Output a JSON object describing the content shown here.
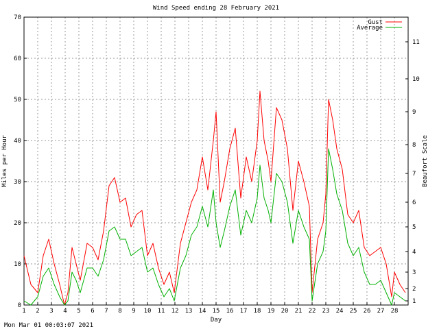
{
  "chart_data": {
    "type": "line",
    "title": "Wind Speed ending 28 February 2021",
    "xlabel": "Day",
    "ylabel": "Miles per Hour",
    "y2label": "Beaufort Scale",
    "xlim": [
      1,
      29
    ],
    "ylim": [
      0,
      70
    ],
    "grid": true,
    "legend_position": "top-right",
    "x_ticks": [
      "1",
      "2",
      "3",
      "4",
      "5",
      "6",
      "7",
      "8",
      "9",
      "10",
      "11",
      "12",
      "13",
      "14",
      "15",
      "16",
      "17",
      "18",
      "19",
      "20",
      "21",
      "22",
      "23",
      "24",
      "25",
      "26",
      "27",
      "28"
    ],
    "y_ticks": [
      "0",
      "10",
      "20",
      "30",
      "40",
      "50",
      "60",
      "70"
    ],
    "beaufort_ticks": [
      {
        "label": "1",
        "mph": 1
      },
      {
        "label": "2",
        "mph": 4
      },
      {
        "label": "3",
        "mph": 8
      },
      {
        "label": "4",
        "mph": 13
      },
      {
        "label": "5",
        "mph": 19
      },
      {
        "label": "6",
        "mph": 25
      },
      {
        "label": "7",
        "mph": 32
      },
      {
        "label": "8",
        "mph": 39
      },
      {
        "label": "9",
        "mph": 47
      },
      {
        "label": "10",
        "mph": 55
      },
      {
        "label": "11",
        "mph": 64
      }
    ],
    "series": [
      {
        "name": "Gust",
        "color": "#ff0000",
        "x": [
          1.0,
          1.5,
          2.0,
          2.4,
          2.8,
          3.2,
          3.6,
          3.95,
          4.2,
          4.5,
          4.8,
          5.1,
          5.6,
          6.0,
          6.4,
          6.8,
          7.2,
          7.6,
          8.0,
          8.4,
          8.8,
          9.2,
          9.6,
          10.0,
          10.4,
          10.8,
          11.2,
          11.6,
          11.95,
          12.4,
          12.8,
          13.2,
          13.6,
          14.0,
          14.4,
          14.8,
          15.0,
          15.3,
          15.6,
          16.0,
          16.4,
          16.8,
          17.2,
          17.6,
          18.0,
          18.2,
          18.5,
          18.8,
          19.0,
          19.4,
          19.8,
          20.2,
          20.6,
          21.0,
          21.4,
          21.8,
          22.0,
          22.4,
          22.8,
          23.0,
          23.2,
          23.5,
          23.8,
          24.2,
          24.6,
          25.0,
          25.4,
          25.8,
          26.2,
          26.6,
          27.0,
          27.4,
          27.8,
          28.0,
          28.4,
          28.8
        ],
        "y": [
          12,
          5,
          3,
          12,
          16,
          10,
          5,
          0,
          3,
          14,
          10,
          6,
          15,
          14,
          11,
          18,
          29,
          31,
          25,
          26,
          19,
          22,
          23,
          12,
          15,
          9,
          5,
          8,
          3,
          15,
          20,
          25,
          28,
          36,
          28,
          40,
          47,
          25,
          30,
          38,
          43,
          26,
          36,
          30,
          40,
          52,
          40,
          35,
          30,
          48,
          45,
          38,
          23,
          35,
          30,
          24,
          3,
          16,
          20,
          27,
          50,
          45,
          38,
          33,
          22,
          20,
          23,
          14,
          12,
          13,
          14,
          10,
          2,
          8,
          5,
          3
        ]
      },
      {
        "name": "Average",
        "color": "#00b000",
        "x": [
          1.0,
          1.5,
          2.0,
          2.4,
          2.8,
          3.2,
          3.6,
          3.95,
          4.2,
          4.5,
          4.8,
          5.1,
          5.6,
          6.0,
          6.4,
          6.8,
          7.2,
          7.6,
          8.0,
          8.4,
          8.8,
          9.2,
          9.6,
          10.0,
          10.4,
          10.8,
          11.2,
          11.6,
          11.95,
          12.4,
          12.8,
          13.2,
          13.6,
          14.0,
          14.4,
          14.8,
          15.0,
          15.3,
          15.6,
          16.0,
          16.4,
          16.8,
          17.2,
          17.6,
          18.0,
          18.2,
          18.5,
          18.8,
          19.0,
          19.4,
          19.8,
          20.2,
          20.6,
          21.0,
          21.4,
          21.8,
          22.0,
          22.4,
          22.8,
          23.0,
          23.2,
          23.5,
          23.8,
          24.2,
          24.6,
          25.0,
          25.4,
          25.8,
          26.2,
          26.6,
          27.0,
          27.4,
          27.8,
          28.0,
          28.4,
          28.8
        ],
        "y": [
          1,
          0,
          2,
          7,
          9,
          5,
          2,
          0,
          1,
          8,
          6,
          3,
          9,
          9,
          7,
          11,
          18,
          19,
          16,
          16,
          12,
          13,
          14,
          8,
          9,
          5,
          2,
          4,
          1,
          9,
          12,
          17,
          19,
          24,
          19,
          28,
          20,
          14,
          18,
          24,
          28,
          17,
          23,
          20,
          26,
          34,
          26,
          23,
          20,
          32,
          30,
          25,
          15,
          23,
          19,
          16,
          1,
          10,
          13,
          18,
          38,
          33,
          27,
          23,
          15,
          12,
          14,
          8,
          5,
          5,
          6,
          3,
          0,
          3,
          2,
          1
        ]
      }
    ],
    "timestamp": "Mon Mar 01 00:03:07 2021"
  }
}
